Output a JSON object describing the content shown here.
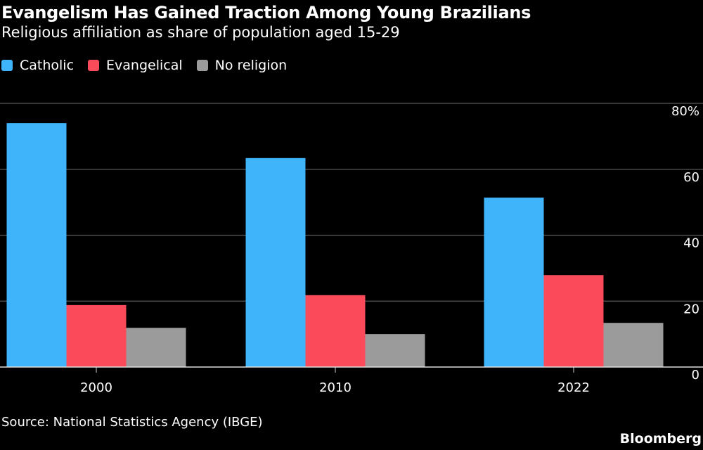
{
  "title": "Evangelism Has Gained Traction Among Young Brazilians",
  "subtitle": "Religious affiliation as share of population aged 15-29",
  "source": "Source: National Statistics Agency (IBGE)",
  "brand": "Bloomberg",
  "chart_data": {
    "type": "bar",
    "categories": [
      "2000",
      "2010",
      "2022"
    ],
    "series": [
      {
        "name": "Catholic",
        "color": "#40b4fa",
        "values": [
          74.0,
          63.4,
          51.4
        ]
      },
      {
        "name": "Evangelical",
        "color": "#fb4b5a",
        "values": [
          18.8,
          21.8,
          27.9
        ]
      },
      {
        "name": "No religion",
        "color": "#9b9b9b",
        "values": [
          11.9,
          10.0,
          13.4
        ]
      }
    ],
    "ylim": [
      0,
      80
    ],
    "yticks": [
      0,
      20,
      40,
      60,
      80
    ],
    "ytick_labels": [
      "0",
      "20",
      "40",
      "60",
      "80%"
    ],
    "grid": true,
    "legend": "top-left"
  }
}
